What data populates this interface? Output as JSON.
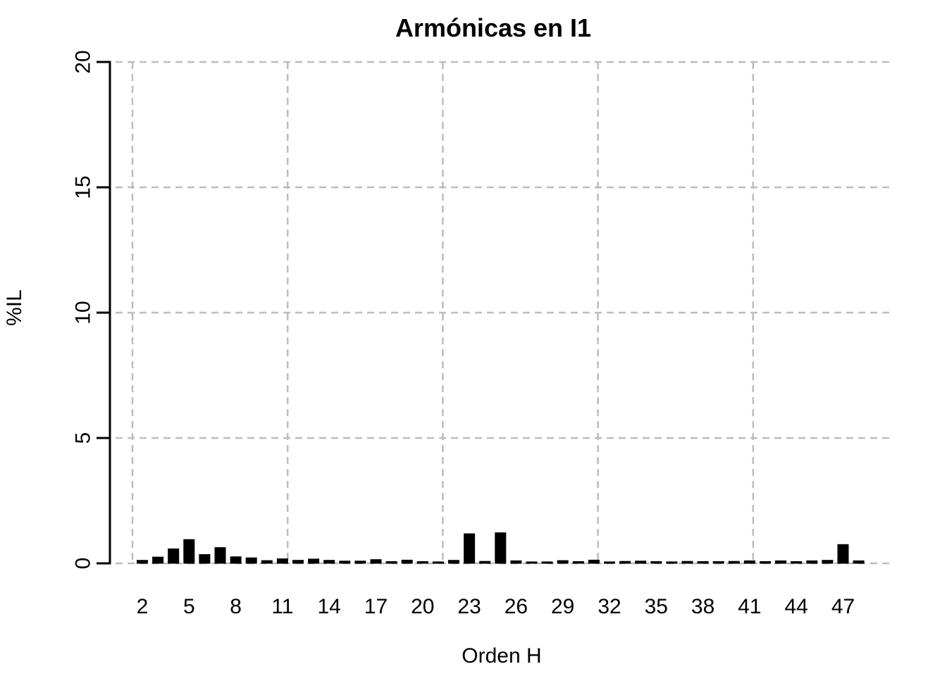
{
  "page": {
    "background_color": "#FFFFFF"
  },
  "chart_data": {
    "type": "bar",
    "title": "Armónicas en I1",
    "xlabel": "Orden H",
    "ylabel": "%IL",
    "ylim": [
      0,
      20
    ],
    "yticks": [
      0,
      5,
      10,
      15,
      20
    ],
    "xtick_labels": [
      2,
      5,
      8,
      11,
      14,
      17,
      20,
      23,
      26,
      29,
      32,
      35,
      38,
      41,
      44,
      47
    ],
    "categories": [
      2,
      3,
      4,
      5,
      6,
      7,
      8,
      9,
      10,
      11,
      12,
      13,
      14,
      15,
      16,
      17,
      18,
      19,
      20,
      21,
      22,
      23,
      24,
      25,
      26,
      27,
      28,
      29,
      30,
      31,
      32,
      33,
      34,
      35,
      36,
      37,
      38,
      39,
      40,
      41,
      42,
      43,
      44,
      45,
      46,
      47,
      48
    ],
    "values": [
      0.12,
      0.25,
      0.58,
      0.95,
      0.35,
      0.63,
      0.26,
      0.22,
      0.11,
      0.18,
      0.12,
      0.17,
      0.12,
      0.09,
      0.09,
      0.15,
      0.07,
      0.13,
      0.07,
      0.06,
      0.12,
      1.18,
      0.08,
      1.22,
      0.1,
      0.06,
      0.06,
      0.11,
      0.07,
      0.13,
      0.06,
      0.08,
      0.09,
      0.07,
      0.06,
      0.08,
      0.07,
      0.07,
      0.08,
      0.1,
      0.07,
      0.1,
      0.07,
      0.1,
      0.12,
      0.75,
      0.1
    ],
    "bar_color": "#000000",
    "axis_color": "#000000",
    "text_color": "#000000",
    "grid": true,
    "grid_color": "#BDBDBD",
    "grid_style": "dashed",
    "legend": null
  }
}
